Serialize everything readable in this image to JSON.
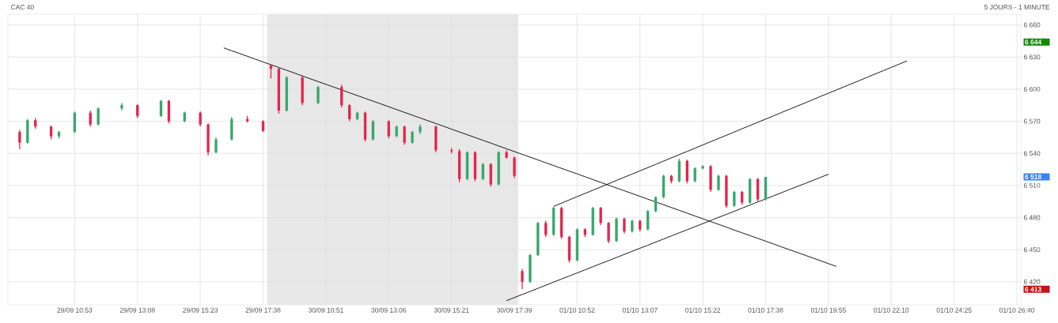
{
  "chart_data": {
    "type": "candlestick",
    "title": "CAC 40",
    "subtitle": "5 JOURS - 1 MINUTE",
    "categories": [
      null,
      null,
      null,
      null,
      null,
      null,
      null,
      "29/09 10:53",
      null,
      null,
      null,
      null,
      null,
      null,
      null,
      "29/09 13:08",
      null,
      null,
      null,
      null,
      null,
      null,
      null,
      "29/09 15:23",
      null,
      null,
      null,
      null,
      null,
      null,
      null,
      "29/09 17:38",
      null,
      null,
      null,
      null,
      null,
      null,
      null,
      "30/09 10:51",
      null,
      null,
      null,
      null,
      null,
      null,
      null,
      "30/09 13:06",
      null,
      null,
      null,
      null,
      null,
      null,
      null,
      "30/09 15:21",
      null,
      null,
      null,
      null,
      null,
      null,
      null,
      "30/09 17:39",
      null,
      null,
      null,
      null,
      null,
      null,
      null,
      "01/10 10:52",
      null,
      null,
      null,
      null,
      null,
      null,
      null,
      "01/10 13:07",
      null,
      null,
      null,
      null,
      null,
      null,
      null,
      "01/10 15:22",
      null,
      null,
      null,
      null,
      null,
      null,
      null,
      "01/10 17:38",
      null,
      null,
      null,
      null,
      null,
      null,
      null,
      "01/10 19:55",
      null,
      null,
      null,
      null,
      null,
      null,
      null,
      "01/10 22:10",
      null,
      null,
      null,
      null,
      null,
      null,
      null,
      "01/10 24:25",
      null,
      null,
      null,
      null,
      null,
      null,
      null,
      "01/10 26:40"
    ],
    "ohlc": [
      [
        6560,
        6562,
        6544,
        6550
      ],
      [
        6550,
        6572,
        6549,
        6571
      ],
      [
        6571,
        6573,
        6563,
        6565
      ],
      null,
      [
        6565,
        6566,
        6553,
        6556
      ],
      [
        6556,
        6561,
        6554,
        6560
      ],
      null,
      [
        6560,
        6579,
        6559,
        6578
      ],
      null,
      [
        6578,
        6580,
        6565,
        6567
      ],
      [
        6567,
        6583,
        6566,
        6582
      ],
      null,
      null,
      [
        6582,
        6587,
        6580,
        6585
      ],
      null,
      [
        6585,
        6586,
        6573,
        6575
      ],
      null,
      null,
      [
        6575,
        6590,
        6574,
        6589
      ],
      [
        6589,
        6590,
        6568,
        6570
      ],
      null,
      [
        6570,
        6579,
        6569,
        6578
      ],
      null,
      [
        6578,
        6579,
        6565,
        6567
      ],
      [
        6567,
        6568,
        6538,
        6541
      ],
      [
        6541,
        6555,
        6540,
        6553
      ],
      null,
      [
        6553,
        6574,
        6552,
        6572
      ],
      null,
      [
        6572,
        6575,
        6569,
        6570
      ],
      null,
      [
        6570,
        6571,
        6560,
        6561
      ],
      [
        6622,
        6623,
        6610,
        6619
      ],
      [
        6619,
        6620,
        6577,
        6580
      ],
      [
        6580,
        6612,
        6579,
        6611
      ],
      null,
      [
        6611,
        6613,
        6585,
        6587
      ],
      null,
      [
        6587,
        6603,
        6586,
        6602
      ],
      null,
      null,
      [
        6602,
        6604,
        6583,
        6585
      ],
      [
        6585,
        6586,
        6570,
        6572
      ],
      [
        6572,
        6579,
        6571,
        6578
      ],
      [
        6578,
        6579,
        6551,
        6553
      ],
      [
        6553,
        6571,
        6552,
        6570
      ],
      null,
      [
        6570,
        6571,
        6554,
        6556
      ],
      [
        6556,
        6566,
        6555,
        6565
      ],
      [
        6565,
        6566,
        6548,
        6550
      ],
      [
        6550,
        6561,
        6549,
        6560
      ],
      [
        6560,
        6567,
        6558,
        6565
      ],
      null,
      [
        6565,
        6566,
        6541,
        6543
      ],
      null,
      [
        6543,
        6545,
        6540,
        6542
      ],
      [
        6542,
        6544,
        6513,
        6516
      ],
      [
        6516,
        6542,
        6515,
        6541
      ],
      [
        6541,
        6542,
        6514,
        6516
      ],
      [
        6516,
        6531,
        6515,
        6530
      ],
      [
        6530,
        6531,
        6509,
        6511
      ],
      [
        6511,
        6542,
        6510,
        6541
      ],
      [
        6541,
        6543,
        6535,
        6536
      ],
      [
        6536,
        6537,
        6517,
        6519
      ],
      [
        6430,
        6432,
        6413,
        6420
      ],
      [
        6420,
        6446,
        6419,
        6445
      ],
      [
        6445,
        6476,
        6444,
        6475
      ],
      [
        6475,
        6477,
        6462,
        6464
      ],
      [
        6464,
        6490,
        6463,
        6489
      ],
      [
        6489,
        6490,
        6460,
        6462
      ],
      [
        6462,
        6463,
        6438,
        6440
      ],
      [
        6440,
        6470,
        6439,
        6469
      ],
      [
        6469,
        6470,
        6462,
        6464
      ],
      [
        6464,
        6490,
        6463,
        6489
      ],
      [
        6489,
        6490,
        6473,
        6475
      ],
      [
        6475,
        6476,
        6456,
        6458
      ],
      [
        6458,
        6480,
        6457,
        6479
      ],
      [
        6479,
        6480,
        6465,
        6467
      ],
      [
        6467,
        6478,
        6466,
        6477
      ],
      [
        6477,
        6478,
        6467,
        6469
      ],
      [
        6469,
        6487,
        6468,
        6486
      ],
      [
        6486,
        6500,
        6485,
        6499
      ],
      [
        6499,
        6520,
        6498,
        6519
      ],
      [
        6519,
        6520,
        6512,
        6514
      ],
      [
        6514,
        6535,
        6513,
        6533
      ],
      [
        6533,
        6534,
        6512,
        6514
      ],
      [
        6514,
        6527,
        6513,
        6526
      ],
      [
        6526,
        6529,
        6525,
        6528
      ],
      [
        6528,
        6529,
        6504,
        6506
      ],
      [
        6506,
        6520,
        6505,
        6519
      ],
      [
        6519,
        6520,
        6489,
        6491
      ],
      [
        6491,
        6505,
        6490,
        6504
      ],
      [
        6504,
        6505,
        6492,
        6494
      ],
      [
        6494,
        6517,
        6493,
        6516
      ],
      [
        6516,
        6517,
        6495,
        6497
      ],
      [
        6497,
        6518,
        6496,
        6518
      ],
      null,
      null,
      null,
      null,
      null,
      null,
      null,
      null,
      null,
      null,
      null,
      null,
      null,
      null,
      null,
      null,
      null,
      null,
      null,
      null,
      null,
      null,
      null,
      null,
      null,
      null,
      null,
      null,
      null,
      null,
      null,
      null
    ],
    "series": [
      {
        "type": "line",
        "color": "#000000",
        "values": [
          null,
          null,
          null,
          null,
          null,
          null,
          null,
          null,
          null,
          null,
          null,
          null,
          null,
          null,
          null,
          null,
          null,
          null,
          null,
          null,
          null,
          null,
          null,
          null,
          null,
          null,
          6638.5,
          6635.9,
          6633.3,
          6630.7,
          6628.0,
          6625.4,
          6622.8,
          6620.2,
          6617.6,
          6615.0,
          6612.3,
          6609.7,
          6607.1,
          6604.5,
          6601.9,
          6599.3,
          6596.6,
          6594.0,
          6591.4,
          6588.8,
          6586.2,
          6583.6,
          6580.9,
          6578.3,
          6575.7,
          6573.1,
          6570.5,
          6567.9,
          6565.3,
          6562.6,
          6560.0,
          6557.4,
          6554.8,
          6552.2,
          6549.6,
          6546.9,
          6544.3,
          6541.7,
          6539.1,
          6536.5,
          6533.9,
          6531.2,
          6528.6,
          6526.0,
          6523.4,
          6520.8,
          6518.2,
          6515.5,
          6512.9,
          6510.3,
          6507.7,
          6505.1,
          6502.5,
          6499.8,
          6497.2,
          6494.6,
          6492.0,
          6489.4,
          6486.8,
          6484.1,
          6481.5,
          6478.9,
          6476.3,
          6473.7,
          6471.1,
          6468.4,
          6465.8,
          6463.2,
          6460.6,
          6458.0,
          6455.4,
          6452.7,
          6450.1,
          6447.5,
          6444.9,
          6442.3,
          6439.7,
          6437.0,
          6434.4,
          null,
          null,
          null,
          null,
          null,
          null,
          null,
          null,
          null,
          null,
          null,
          null,
          null,
          null,
          null,
          null,
          null,
          null,
          null,
          null,
          null,
          null,
          null
        ]
      },
      {
        "type": "line",
        "color": "#000000",
        "values": [
          null,
          null,
          null,
          null,
          null,
          null,
          null,
          null,
          null,
          null,
          null,
          null,
          null,
          null,
          null,
          null,
          null,
          null,
          null,
          null,
          null,
          null,
          null,
          null,
          null,
          null,
          null,
          null,
          null,
          null,
          null,
          null,
          null,
          null,
          null,
          null,
          null,
          null,
          null,
          null,
          null,
          null,
          null,
          null,
          null,
          null,
          null,
          null,
          null,
          null,
          null,
          null,
          null,
          null,
          null,
          null,
          null,
          null,
          null,
          null,
          null,
          null,
          null,
          null,
          null,
          null,
          null,
          null,
          6490.5,
          6493.5,
          6496.5,
          6499.6,
          6502.6,
          6505.6,
          6508.6,
          6511.6,
          6514.7,
          6517.7,
          6520.7,
          6523.7,
          6526.7,
          6529.7,
          6532.8,
          6535.8,
          6538.8,
          6541.8,
          6544.8,
          6547.9,
          6550.9,
          6553.9,
          6556.9,
          6559.9,
          6563.0,
          6566.0,
          6569.0,
          6572.0,
          6575.0,
          6578.1,
          6581.1,
          6584.1,
          6587.1,
          6590.1,
          6593.2,
          6596.2,
          6599.2,
          6602.2,
          6605.2,
          6608.2,
          6611.3,
          6614.3,
          6617.3,
          6620.3,
          6623.3,
          6626.4,
          null,
          null,
          null,
          null,
          null,
          null,
          null,
          null,
          null,
          null,
          null,
          null,
          null,
          null
        ]
      },
      {
        "type": "line",
        "color": "#000000",
        "values": [
          null,
          null,
          null,
          null,
          null,
          null,
          null,
          null,
          null,
          null,
          null,
          null,
          null,
          null,
          null,
          null,
          null,
          null,
          null,
          null,
          null,
          null,
          null,
          null,
          null,
          null,
          null,
          null,
          null,
          null,
          null,
          null,
          null,
          null,
          null,
          null,
          null,
          null,
          null,
          null,
          null,
          null,
          null,
          null,
          null,
          null,
          null,
          null,
          null,
          null,
          null,
          null,
          null,
          null,
          null,
          null,
          null,
          null,
          null,
          null,
          null,
          null,
          6402.4,
          6405.3,
          6408.2,
          6411.0,
          6413.9,
          6416.8,
          6419.7,
          6422.6,
          6425.4,
          6428.3,
          6431.2,
          6434.1,
          6437.0,
          6439.8,
          6442.7,
          6445.6,
          6448.5,
          6451.4,
          6454.2,
          6457.1,
          6460.0,
          6462.9,
          6465.8,
          6468.6,
          6471.5,
          6474.4,
          6477.3,
          6480.2,
          6483.0,
          6485.9,
          6488.8,
          6491.7,
          6494.6,
          6497.4,
          6500.3,
          6503.2,
          6506.1,
          6509.0,
          6511.8,
          6514.7,
          6517.6,
          6520.5,
          null,
          null,
          null,
          null,
          null,
          null,
          null,
          null,
          null,
          null,
          null,
          null,
          null,
          null,
          null,
          null,
          null,
          null,
          null,
          null,
          null,
          null,
          null,
          null
        ]
      }
    ],
    "bands": [
      {
        "axis": "x",
        "from": "29/09 17:38",
        "to": "30/09 17:39",
        "color": "#e8e8e8"
      }
    ],
    "ylim": [
      6398.5,
      6670
    ],
    "yticks": [
      {
        "value": 6420,
        "label": "6 420"
      },
      {
        "value": 6450,
        "label": "6 450"
      },
      {
        "value": 6480,
        "label": "6 480"
      },
      {
        "value": 6510,
        "label": "6 510"
      },
      {
        "value": 6540,
        "label": "6 540"
      },
      {
        "value": 6570,
        "label": "6 570"
      },
      {
        "value": 6600,
        "label": "6 600"
      },
      {
        "value": 6630,
        "label": "6 630"
      },
      {
        "value": 6660,
        "label": "6 660"
      },
      {
        "value": 6644,
        "label": "6 644"
      },
      {
        "value": 6518,
        "label": "6 518"
      },
      {
        "value": 6413,
        "label": "6 413"
      }
    ],
    "grid": true
  }
}
